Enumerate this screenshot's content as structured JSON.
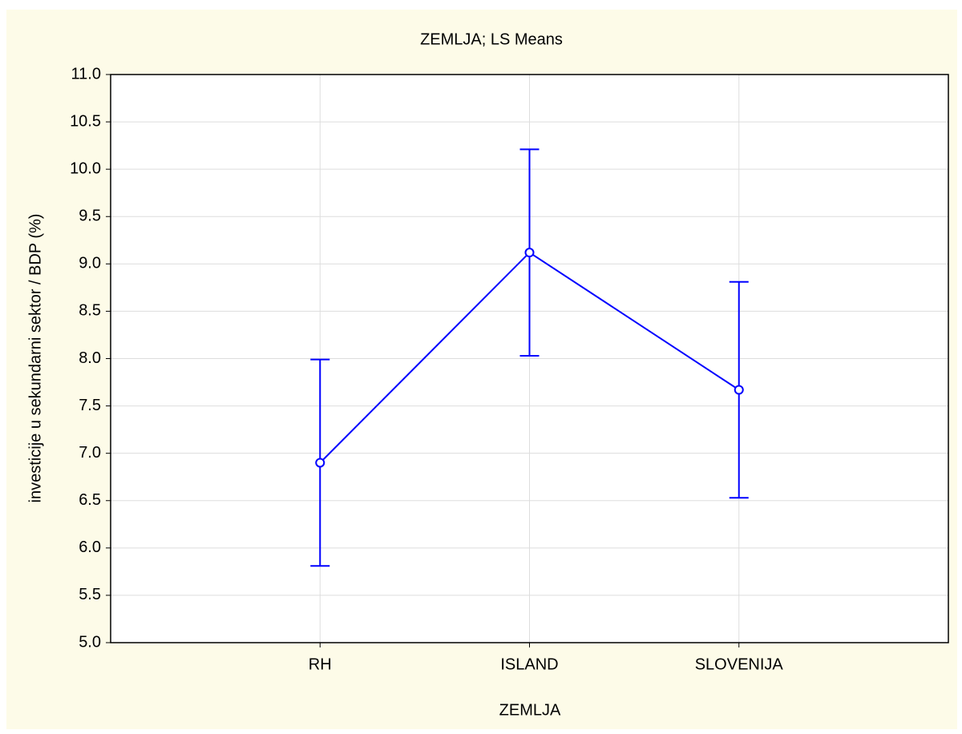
{
  "chart_data": {
    "type": "line",
    "title": "ZEMLJA; LS Means",
    "x_label": "ZEMLJA",
    "y_label": "investicije u sekundarni sektor / BDP (%)",
    "categories": [
      "RH",
      "ISLAND",
      "SLOVENIJA"
    ],
    "series": [
      {
        "color": "#0000ff",
        "values": [
          6.9,
          9.12,
          7.67
        ],
        "errors": [
          1.09,
          1.09,
          1.14
        ]
      }
    ],
    "ylim": [
      5,
      11
    ],
    "yticks": [
      {
        "value": 5,
        "label": "5.0"
      },
      {
        "value": 5.5,
        "label": "5.5"
      },
      {
        "value": 6,
        "label": "6.0"
      },
      {
        "value": 6.5,
        "label": "6.5"
      },
      {
        "value": 7,
        "label": "7.0"
      },
      {
        "value": 7.5,
        "label": "7.5"
      },
      {
        "value": 8,
        "label": "8.0"
      },
      {
        "value": 8.5,
        "label": "8.5"
      },
      {
        "value": 9,
        "label": "9.0"
      },
      {
        "value": 9.5,
        "label": "9.5"
      },
      {
        "value": 10,
        "label": "10.0"
      },
      {
        "value": 10.5,
        "label": "10.5"
      },
      {
        "value": 11,
        "label": "11.0"
      }
    ],
    "grid": true
  }
}
